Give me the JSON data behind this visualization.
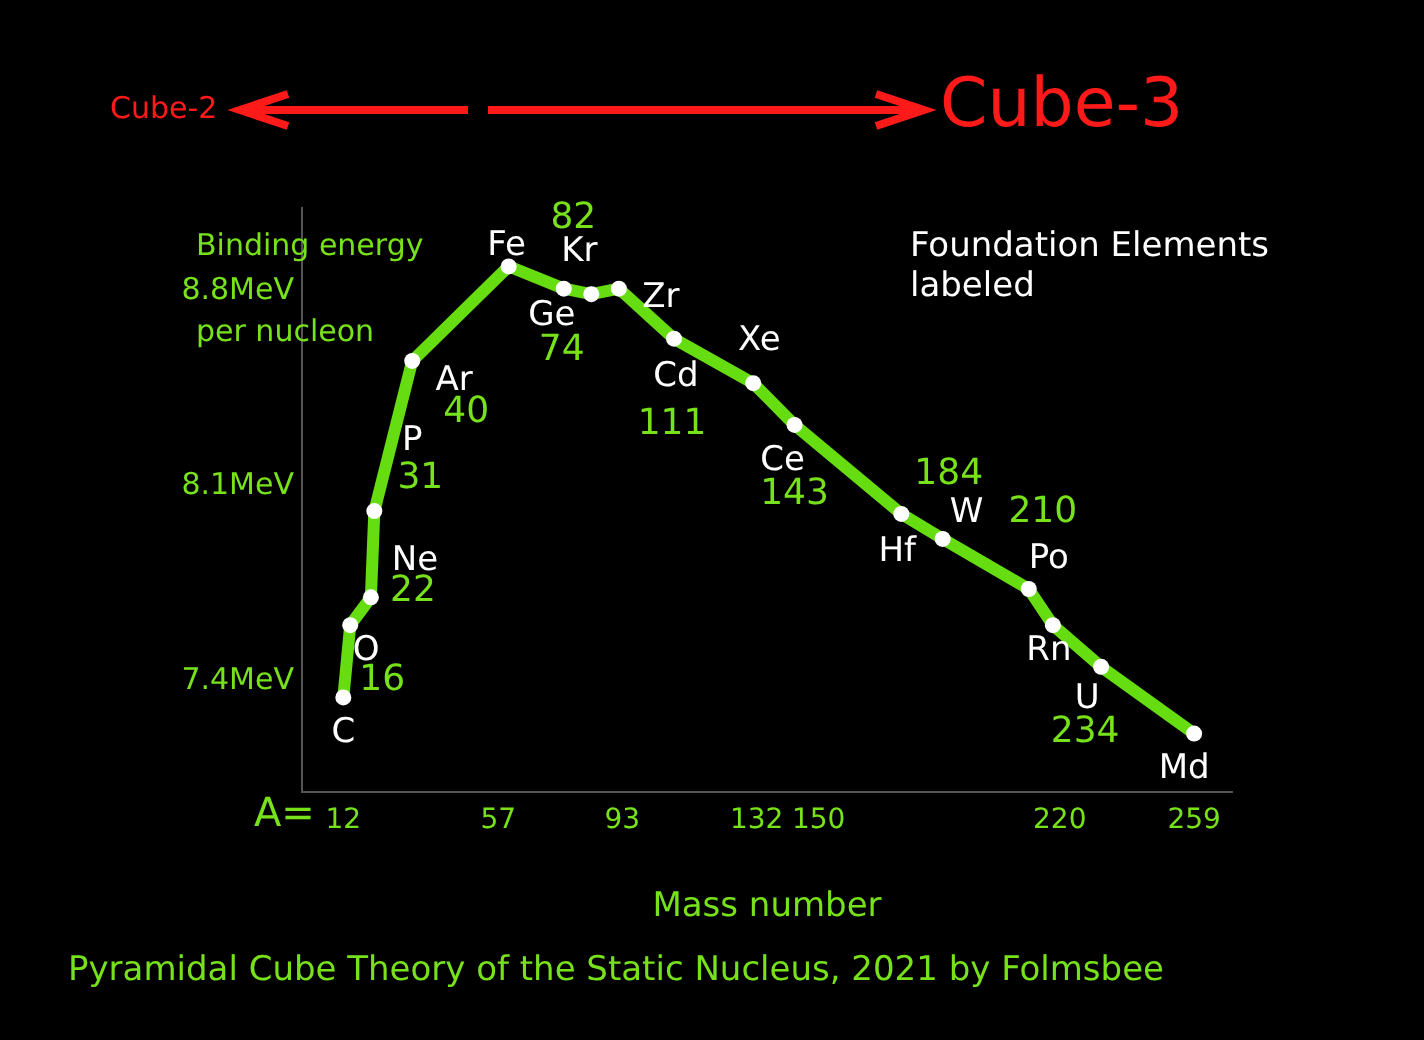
{
  "chart_data": {
    "type": "line",
    "title": "Pyramidal Cube Theory of the Static Nucleus, 2021 by Folmsbee",
    "xlabel": "Mass number",
    "ylabel": "Binding energy per nucleon",
    "x": [
      12,
      14,
      20,
      21,
      32,
      60,
      76,
      84,
      92,
      108,
      131,
      143,
      174,
      186,
      211,
      218,
      232,
      259
    ],
    "series": [
      {
        "color": "#66dd11",
        "values": [
          7.34,
          7.6,
          7.7,
          8.01,
          8.55,
          8.89,
          8.81,
          8.79,
          8.81,
          8.63,
          8.47,
          8.32,
          8.0,
          7.91,
          7.73,
          7.6,
          7.45,
          7.21
        ]
      }
    ],
    "marker": "circle",
    "xlim": [
      0,
      270
    ],
    "xticks": [
      12,
      57,
      93,
      132,
      150,
      220,
      259
    ],
    "ylim": [
      7.0,
      9.1
    ],
    "yticks": [
      {
        "value": 7.4,
        "label": "7.4MeV"
      },
      {
        "value": 8.1,
        "label": "8.1MeV"
      },
      {
        "value": 8.8,
        "label": "8.8MeV"
      }
    ],
    "annotations": [
      "Cube-2",
      "Cube-3",
      "Foundation Elements labeled",
      "A=",
      {
        "text": "C",
        "x": 12,
        "y": 7.34
      },
      {
        "text": "O",
        "x": 14,
        "y": 7.6
      },
      {
        "text": "Ne",
        "x": 20,
        "y": 7.7
      },
      {
        "text": "P",
        "x": 21,
        "y": 8.01
      },
      {
        "text": "Ar",
        "x": 32,
        "y": 8.55
      },
      {
        "text": "Fe",
        "x": 60,
        "y": 8.89
      },
      {
        "text": "Kr",
        "x": 84,
        "y": 8.79
      },
      {
        "text": "Ge",
        "x": 76,
        "y": 8.81
      },
      {
        "text": "Zr",
        "x": 92,
        "y": 8.81
      },
      {
        "text": "Cd",
        "x": 108,
        "y": 8.63
      },
      {
        "text": "Xe",
        "x": 131,
        "y": 8.47
      },
      {
        "text": "Ce",
        "x": 143,
        "y": 8.32
      },
      {
        "text": "Hf",
        "x": 174,
        "y": 8.0
      },
      {
        "text": "W",
        "x": 186,
        "y": 7.91
      },
      {
        "text": "Po",
        "x": 211,
        "y": 7.73
      },
      {
        "text": "Rn",
        "x": 218,
        "y": 7.6
      },
      {
        "text": "U",
        "x": 232,
        "y": 7.45
      },
      {
        "text": "Md",
        "x": 259,
        "y": 7.21
      },
      {
        "text": "40",
        "x": 32,
        "y": 8.55
      },
      {
        "text": "31",
        "x": 21,
        "y": 8.01
      },
      {
        "text": "22",
        "x": 20,
        "y": 7.7
      },
      {
        "text": "16",
        "x": 14,
        "y": 7.6
      },
      {
        "text": "74",
        "x": 76,
        "y": 8.81
      },
      {
        "text": "82",
        "x": 84,
        "y": 8.79
      },
      {
        "text": "111",
        "x": 108,
        "y": 8.63
      },
      {
        "text": "143",
        "x": 143,
        "y": 8.32
      },
      {
        "text": "184",
        "x": 186,
        "y": 7.91
      },
      {
        "text": "210",
        "x": 211,
        "y": 7.73
      },
      {
        "text": "234",
        "x": 232,
        "y": 7.45
      }
    ]
  }
}
